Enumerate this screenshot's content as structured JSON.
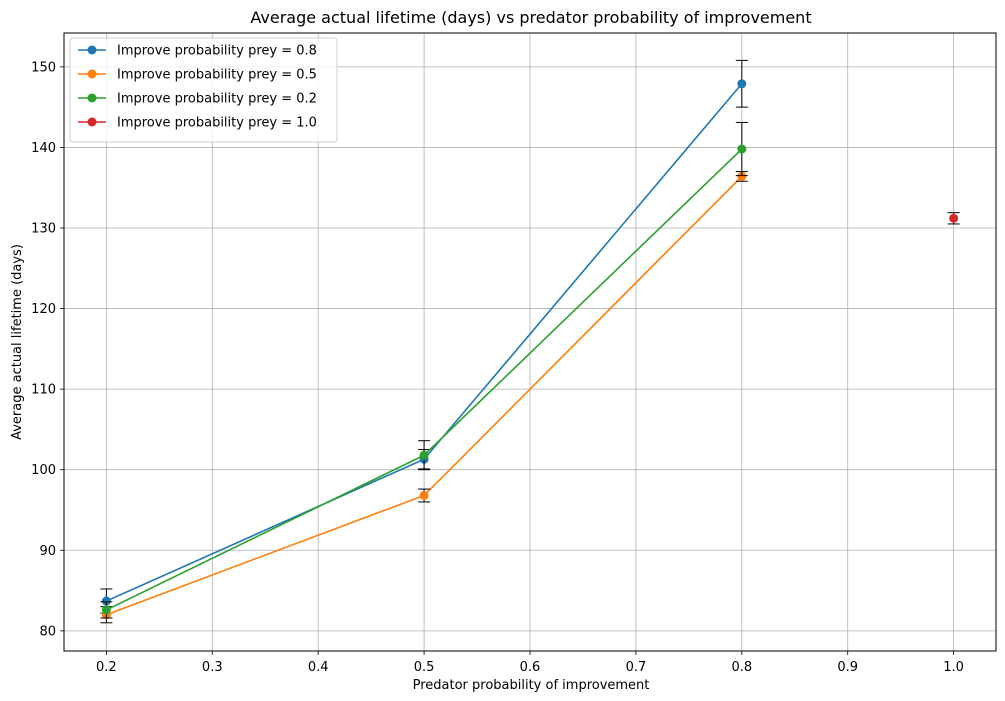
{
  "chart_data": {
    "type": "line",
    "title": "Average actual lifetime (days) vs predator probability of improvement",
    "xlabel": "Predator probability of improvement",
    "ylabel": "Average actual lifetime (days)",
    "xlim": [
      0.16,
      1.04
    ],
    "ylim": [
      77.5,
      154.2
    ],
    "xticks": [
      "0.2",
      "0.3",
      "0.4",
      "0.5",
      "0.6",
      "0.7",
      "0.8",
      "0.9",
      "1.0"
    ],
    "yticks": [
      "80",
      "90",
      "100",
      "110",
      "120",
      "130",
      "140",
      "150"
    ],
    "grid": true,
    "legend_position": "top-left",
    "series": [
      {
        "name": "Improve probability prey = 0.8",
        "color": "#1f77b4",
        "x": [
          0.2,
          0.5,
          0.8
        ],
        "y": [
          83.7,
          101.3,
          147.9
        ],
        "err": [
          1.5,
          1.2,
          2.9
        ]
      },
      {
        "name": "Improve probability prey = 0.5",
        "color": "#ff7f0e",
        "x": [
          0.2,
          0.5,
          0.8
        ],
        "y": [
          82.0,
          96.8,
          136.4
        ],
        "err": [
          1.0,
          0.8,
          0.6
        ]
      },
      {
        "name": "Improve probability prey = 0.2",
        "color": "#2ca02c",
        "x": [
          0.2,
          0.5,
          0.8
        ],
        "y": [
          82.6,
          101.8,
          139.8
        ],
        "err": [
          1.0,
          1.8,
          3.3
        ]
      },
      {
        "name": "Improve probability prey = 1.0",
        "color": "#d62728",
        "x": [
          1.0
        ],
        "y": [
          131.2
        ],
        "err": [
          0.7
        ]
      }
    ]
  }
}
